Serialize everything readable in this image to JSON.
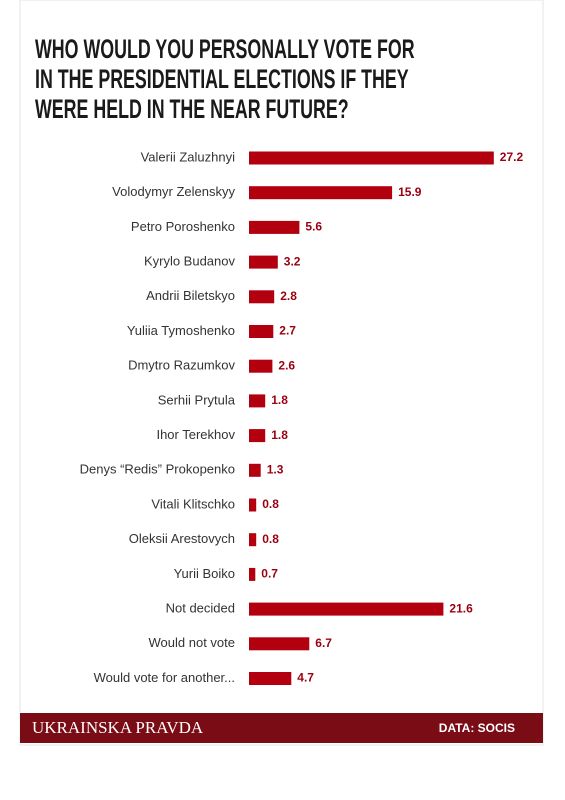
{
  "chart_data": {
    "type": "bar",
    "orientation": "horizontal",
    "title": [
      "WHO WOULD YOU PERSONALLY VOTE FOR",
      "IN THE PRESIDENTIAL ELECTIONS IF THEY",
      "WERE HELD IN THE NEAR FUTURE?"
    ],
    "categories": [
      "Valerii Zaluzhnyi",
      "Volodymyr Zelenskyy",
      "Petro Poroshenko",
      "Kyrylo Budanov",
      "Andrii Biletskyo",
      "Yuliia Tymoshenko",
      "Dmytro Razumkov",
      "Serhii Prytula",
      "Ihor Terekhov",
      "Denys “Redis” Prokopenko",
      "Vitali Klitschko",
      "Oleksii Arestovych",
      "Yurii Boiko",
      "Not decided",
      "Would not vote",
      "Would vote for another..."
    ],
    "values": [
      27.2,
      15.9,
      5.6,
      3.2,
      2.8,
      2.7,
      2.6,
      1.8,
      1.8,
      1.3,
      0.8,
      0.8,
      0.7,
      21.6,
      6.7,
      4.7
    ],
    "color": "#b3000e",
    "brand": "UKRAINSKA PRAVDA",
    "source": "DATA: SOCIS"
  }
}
